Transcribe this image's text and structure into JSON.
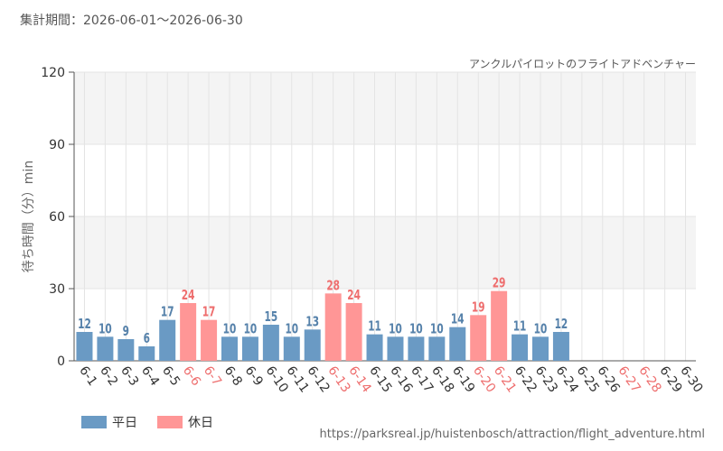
{
  "header": {
    "period_label": "集計期間：2026-06-01～2026-06-30"
  },
  "footer": {
    "source_url": "https://parksreal.jp/huistenbosch/attraction/flight_adventure.html"
  },
  "colors": {
    "weekday": "#6a9ac4",
    "holiday": "#ff9696",
    "weekday_label": "#5581aa",
    "holiday_label": "#ee6e6e",
    "axis_text": "#333333",
    "grid_band": "#f4f4f4",
    "grid_line": "#e4e4e4"
  },
  "chart_data": {
    "type": "bar",
    "title": "アンクルパイロットのフライトアドベンチャー",
    "ylabel": "待ち時間（分）min",
    "xlabel": "",
    "ylim": [
      0,
      120
    ],
    "yticks": [
      0,
      30,
      60,
      90,
      120
    ],
    "grid": true,
    "legend": "bottom-left",
    "series": [
      {
        "name": "平日",
        "color": "#6a9ac4"
      },
      {
        "name": "休日",
        "color": "#ff9696"
      }
    ],
    "categories": [
      "6-1",
      "6-2",
      "6-3",
      "6-4",
      "6-5",
      "6-6",
      "6-7",
      "6-8",
      "6-9",
      "6-10",
      "6-11",
      "6-12",
      "6-13",
      "6-14",
      "6-15",
      "6-16",
      "6-17",
      "6-18",
      "6-19",
      "6-20",
      "6-21",
      "6-22",
      "6-23",
      "6-24",
      "6-25",
      "6-26",
      "6-27",
      "6-28",
      "6-29",
      "6-30"
    ],
    "day_type": [
      "平日",
      "平日",
      "平日",
      "平日",
      "平日",
      "休日",
      "休日",
      "平日",
      "平日",
      "平日",
      "平日",
      "平日",
      "休日",
      "休日",
      "平日",
      "平日",
      "平日",
      "平日",
      "平日",
      "休日",
      "休日",
      "平日",
      "平日",
      "平日",
      "平日",
      "平日",
      "休日",
      "休日",
      "平日",
      "平日"
    ],
    "values": [
      12,
      10,
      9,
      6,
      17,
      24,
      17,
      10,
      10,
      15,
      10,
      13,
      28,
      24,
      11,
      10,
      10,
      10,
      14,
      19,
      29,
      11,
      10,
      12,
      null,
      null,
      null,
      null,
      null,
      null
    ]
  }
}
